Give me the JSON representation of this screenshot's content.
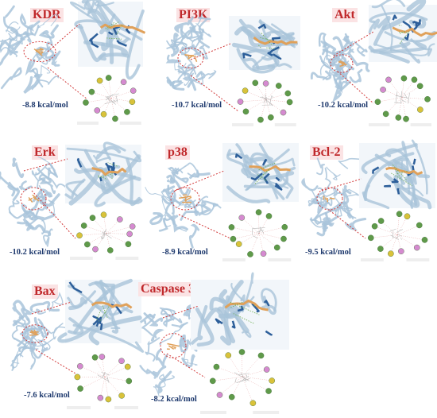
{
  "panels": [
    {
      "protein": "KDR",
      "energy": "-8.8 kcal/mol"
    },
    {
      "protein": "PI3K",
      "energy": "-10.7 kcal/mol"
    },
    {
      "protein": "Akt",
      "energy": "-10.2 kcal/mol"
    },
    {
      "protein": "Erk",
      "energy": "-10.2 kcal/mol"
    },
    {
      "protein": "p38",
      "energy": "-8.9 kcal/mol"
    },
    {
      "protein": "Bcl-2",
      "energy": "-9.5 kcal/mol"
    },
    {
      "protein": "Bax",
      "energy": "-7.6 kcal/mol"
    },
    {
      "protein": "Caspase 3",
      "energy": "-8.2 kcal/mol"
    }
  ],
  "colors": {
    "title_text": "#c0282b",
    "title_bg": "#fbe3e4",
    "energy_text": "#1f3a6e",
    "protein_ribbon": "#a9c4da",
    "ligand": "#e0a15a",
    "residue": "#2d5f9a",
    "connector": "#d23a3a",
    "interaction_green": "#5f9a4a",
    "interaction_pink": "#d58ad0",
    "interaction_yellow": "#d9c23a"
  }
}
